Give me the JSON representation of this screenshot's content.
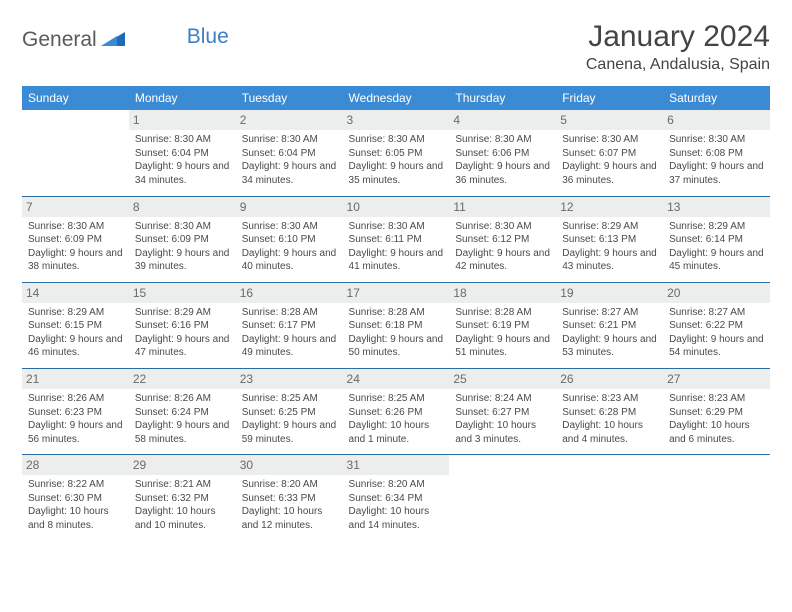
{
  "logo": {
    "part1": "General",
    "part2": "Blue"
  },
  "header": {
    "title": "January 2024",
    "location": "Canena, Andalusia, Spain"
  },
  "colors": {
    "header_bg": "#3b8bd4",
    "header_text": "#ffffff",
    "row_divider": "#2a6ca8",
    "daynum_bg": "#eceded",
    "text": "#4a4a4a",
    "logo_gray": "#5a5a5a",
    "logo_blue": "#3b7fc4"
  },
  "dayHeaders": [
    "Sunday",
    "Monday",
    "Tuesday",
    "Wednesday",
    "Thursday",
    "Friday",
    "Saturday"
  ],
  "weeks": [
    [
      {
        "day": "",
        "sunrise": "",
        "sunset": "",
        "daylight": ""
      },
      {
        "day": "1",
        "sunrise": "Sunrise: 8:30 AM",
        "sunset": "Sunset: 6:04 PM",
        "daylight": "Daylight: 9 hours and 34 minutes."
      },
      {
        "day": "2",
        "sunrise": "Sunrise: 8:30 AM",
        "sunset": "Sunset: 6:04 PM",
        "daylight": "Daylight: 9 hours and 34 minutes."
      },
      {
        "day": "3",
        "sunrise": "Sunrise: 8:30 AM",
        "sunset": "Sunset: 6:05 PM",
        "daylight": "Daylight: 9 hours and 35 minutes."
      },
      {
        "day": "4",
        "sunrise": "Sunrise: 8:30 AM",
        "sunset": "Sunset: 6:06 PM",
        "daylight": "Daylight: 9 hours and 36 minutes."
      },
      {
        "day": "5",
        "sunrise": "Sunrise: 8:30 AM",
        "sunset": "Sunset: 6:07 PM",
        "daylight": "Daylight: 9 hours and 36 minutes."
      },
      {
        "day": "6",
        "sunrise": "Sunrise: 8:30 AM",
        "sunset": "Sunset: 6:08 PM",
        "daylight": "Daylight: 9 hours and 37 minutes."
      }
    ],
    [
      {
        "day": "7",
        "sunrise": "Sunrise: 8:30 AM",
        "sunset": "Sunset: 6:09 PM",
        "daylight": "Daylight: 9 hours and 38 minutes."
      },
      {
        "day": "8",
        "sunrise": "Sunrise: 8:30 AM",
        "sunset": "Sunset: 6:09 PM",
        "daylight": "Daylight: 9 hours and 39 minutes."
      },
      {
        "day": "9",
        "sunrise": "Sunrise: 8:30 AM",
        "sunset": "Sunset: 6:10 PM",
        "daylight": "Daylight: 9 hours and 40 minutes."
      },
      {
        "day": "10",
        "sunrise": "Sunrise: 8:30 AM",
        "sunset": "Sunset: 6:11 PM",
        "daylight": "Daylight: 9 hours and 41 minutes."
      },
      {
        "day": "11",
        "sunrise": "Sunrise: 8:30 AM",
        "sunset": "Sunset: 6:12 PM",
        "daylight": "Daylight: 9 hours and 42 minutes."
      },
      {
        "day": "12",
        "sunrise": "Sunrise: 8:29 AM",
        "sunset": "Sunset: 6:13 PM",
        "daylight": "Daylight: 9 hours and 43 minutes."
      },
      {
        "day": "13",
        "sunrise": "Sunrise: 8:29 AM",
        "sunset": "Sunset: 6:14 PM",
        "daylight": "Daylight: 9 hours and 45 minutes."
      }
    ],
    [
      {
        "day": "14",
        "sunrise": "Sunrise: 8:29 AM",
        "sunset": "Sunset: 6:15 PM",
        "daylight": "Daylight: 9 hours and 46 minutes."
      },
      {
        "day": "15",
        "sunrise": "Sunrise: 8:29 AM",
        "sunset": "Sunset: 6:16 PM",
        "daylight": "Daylight: 9 hours and 47 minutes."
      },
      {
        "day": "16",
        "sunrise": "Sunrise: 8:28 AM",
        "sunset": "Sunset: 6:17 PM",
        "daylight": "Daylight: 9 hours and 49 minutes."
      },
      {
        "day": "17",
        "sunrise": "Sunrise: 8:28 AM",
        "sunset": "Sunset: 6:18 PM",
        "daylight": "Daylight: 9 hours and 50 minutes."
      },
      {
        "day": "18",
        "sunrise": "Sunrise: 8:28 AM",
        "sunset": "Sunset: 6:19 PM",
        "daylight": "Daylight: 9 hours and 51 minutes."
      },
      {
        "day": "19",
        "sunrise": "Sunrise: 8:27 AM",
        "sunset": "Sunset: 6:21 PM",
        "daylight": "Daylight: 9 hours and 53 minutes."
      },
      {
        "day": "20",
        "sunrise": "Sunrise: 8:27 AM",
        "sunset": "Sunset: 6:22 PM",
        "daylight": "Daylight: 9 hours and 54 minutes."
      }
    ],
    [
      {
        "day": "21",
        "sunrise": "Sunrise: 8:26 AM",
        "sunset": "Sunset: 6:23 PM",
        "daylight": "Daylight: 9 hours and 56 minutes."
      },
      {
        "day": "22",
        "sunrise": "Sunrise: 8:26 AM",
        "sunset": "Sunset: 6:24 PM",
        "daylight": "Daylight: 9 hours and 58 minutes."
      },
      {
        "day": "23",
        "sunrise": "Sunrise: 8:25 AM",
        "sunset": "Sunset: 6:25 PM",
        "daylight": "Daylight: 9 hours and 59 minutes."
      },
      {
        "day": "24",
        "sunrise": "Sunrise: 8:25 AM",
        "sunset": "Sunset: 6:26 PM",
        "daylight": "Daylight: 10 hours and 1 minute."
      },
      {
        "day": "25",
        "sunrise": "Sunrise: 8:24 AM",
        "sunset": "Sunset: 6:27 PM",
        "daylight": "Daylight: 10 hours and 3 minutes."
      },
      {
        "day": "26",
        "sunrise": "Sunrise: 8:23 AM",
        "sunset": "Sunset: 6:28 PM",
        "daylight": "Daylight: 10 hours and 4 minutes."
      },
      {
        "day": "27",
        "sunrise": "Sunrise: 8:23 AM",
        "sunset": "Sunset: 6:29 PM",
        "daylight": "Daylight: 10 hours and 6 minutes."
      }
    ],
    [
      {
        "day": "28",
        "sunrise": "Sunrise: 8:22 AM",
        "sunset": "Sunset: 6:30 PM",
        "daylight": "Daylight: 10 hours and 8 minutes."
      },
      {
        "day": "29",
        "sunrise": "Sunrise: 8:21 AM",
        "sunset": "Sunset: 6:32 PM",
        "daylight": "Daylight: 10 hours and 10 minutes."
      },
      {
        "day": "30",
        "sunrise": "Sunrise: 8:20 AM",
        "sunset": "Sunset: 6:33 PM",
        "daylight": "Daylight: 10 hours and 12 minutes."
      },
      {
        "day": "31",
        "sunrise": "Sunrise: 8:20 AM",
        "sunset": "Sunset: 6:34 PM",
        "daylight": "Daylight: 10 hours and 14 minutes."
      },
      {
        "day": "",
        "sunrise": "",
        "sunset": "",
        "daylight": ""
      },
      {
        "day": "",
        "sunrise": "",
        "sunset": "",
        "daylight": ""
      },
      {
        "day": "",
        "sunrise": "",
        "sunset": "",
        "daylight": ""
      }
    ]
  ]
}
